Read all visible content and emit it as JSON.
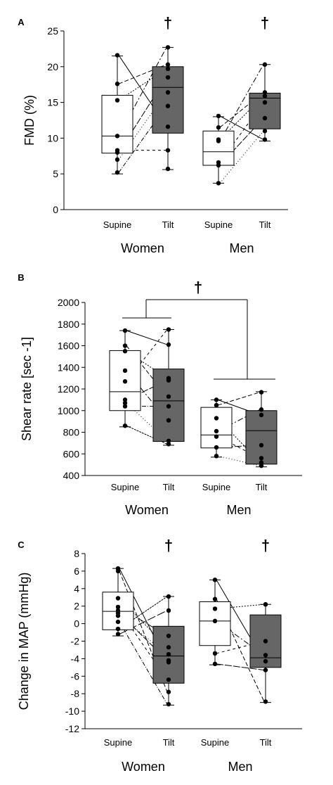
{
  "chart_data": [
    {
      "panel": "A",
      "type": "boxplot",
      "ylabel": "FMD (%)",
      "ylim": [
        0,
        25
      ],
      "yticks": [
        0,
        5,
        10,
        15,
        20,
        25
      ],
      "groups": [
        {
          "label": "Women",
          "conditions": [
            {
              "label": "Supine",
              "fill": "#ffffff",
              "box": {
                "whisker_low": 5.0,
                "q1": 7.9,
                "median": 10.3,
                "q3": 16.0,
                "whisker_high": 21.5
              },
              "points": [
                21.6,
                17.6,
                15.3,
                10.3,
                8.3,
                8.0,
                7.0,
                5.2
              ],
              "marker": ""
            },
            {
              "label": "Tilt",
              "fill": "#666666",
              "box": {
                "whisker_low": 5.6,
                "q1": 10.7,
                "median": 17.1,
                "q3": 20.0,
                "whisker_high": 22.7
              },
              "points": [
                22.7,
                20.3,
                19.7,
                18.5,
                16.4,
                14.5,
                11.6,
                8.3,
                5.7
              ],
              "marker": "†"
            }
          ],
          "pairs": [
            [
              21.6,
              11.6
            ],
            [
              17.6,
              20.3
            ],
            [
              15.3,
              19.7
            ],
            [
              10.3,
              22.7
            ],
            [
              8.3,
              8.3
            ],
            [
              8.0,
              18.5
            ],
            [
              7.0,
              16.4
            ],
            [
              5.2,
              14.5
            ]
          ]
        },
        {
          "label": "Men",
          "conditions": [
            {
              "label": "Supine",
              "fill": "#ffffff",
              "box": {
                "whisker_low": 3.7,
                "q1": 6.2,
                "median": 8.1,
                "q3": 11.0,
                "whisker_high": 13.0
              },
              "points": [
                13.1,
                11.5,
                9.8,
                9.6,
                6.6,
                6.2,
                3.7
              ],
              "marker": ""
            },
            {
              "label": "Tilt",
              "fill": "#666666",
              "box": {
                "whisker_low": 9.6,
                "q1": 11.3,
                "median": 15.6,
                "q3": 16.3,
                "whisker_high": 20.3
              },
              "points": [
                20.3,
                16.4,
                15.9,
                15.0,
                12.8,
                11.0,
                9.8
              ],
              "marker": "†"
            }
          ],
          "pairs": [
            [
              13.1,
              9.8
            ],
            [
              11.5,
              16.4
            ],
            [
              9.8,
              15.9
            ],
            [
              9.6,
              20.3
            ],
            [
              6.6,
              15.0
            ],
            [
              6.2,
              12.8
            ],
            [
              3.7,
              11.0
            ]
          ]
        }
      ]
    },
    {
      "panel": "B",
      "type": "boxplot",
      "ylabel": "Shear rate [sec -1]",
      "ylim": [
        400,
        2000
      ],
      "yticks": [
        400,
        600,
        800,
        1000,
        1200,
        1400,
        1600,
        1800,
        2000
      ],
      "group_marker": "†",
      "groups": [
        {
          "label": "Women",
          "conditions": [
            {
              "label": "Supine",
              "fill": "#ffffff",
              "box": {
                "whisker_low": 850,
                "q1": 1000,
                "median": 1175,
                "q3": 1555,
                "whisker_high": 1740
              },
              "points": [
                1740,
                1600,
                1550,
                1370,
                1270,
                1100,
                1070,
                1040,
                860
              ]
            },
            {
              "label": "Tilt",
              "fill": "#666666",
              "box": {
                "whisker_low": 680,
                "q1": 715,
                "median": 1090,
                "q3": 1385,
                "whisker_high": 1750
              },
              "points": [
                1750,
                1610,
                1300,
                1280,
                1130,
                1040,
                910,
                720,
                690
              ]
            }
          ],
          "pairs": [
            [
              1740,
              1610
            ],
            [
              1600,
              1130
            ],
            [
              1550,
              1300
            ],
            [
              1370,
              910
            ],
            [
              1270,
              1750
            ],
            [
              1100,
              1280
            ],
            [
              1070,
              720
            ],
            [
              1040,
              1040
            ],
            [
              860,
              690
            ]
          ]
        },
        {
          "label": "Men",
          "conditions": [
            {
              "label": "Supine",
              "fill": "#ffffff",
              "box": {
                "whisker_low": 570,
                "q1": 655,
                "median": 775,
                "q3": 1030,
                "whisker_high": 1100
              },
              "points": [
                1100,
                1050,
                930,
                810,
                760,
                660,
                580
              ]
            },
            {
              "label": "Tilt",
              "fill": "#666666",
              "box": {
                "whisker_low": 480,
                "q1": 505,
                "median": 815,
                "q3": 1000,
                "whisker_high": 1175
              },
              "points": [
                1170,
                1010,
                960,
                680,
                560,
                520,
                490
              ]
            }
          ],
          "pairs": [
            [
              1100,
              960
            ],
            [
              1050,
              1170
            ],
            [
              930,
              520
            ],
            [
              810,
              1010
            ],
            [
              760,
              560
            ],
            [
              660,
              680
            ],
            [
              580,
              490
            ]
          ]
        }
      ]
    },
    {
      "panel": "C",
      "type": "boxplot",
      "ylabel": "Change in MAP (mmHg)",
      "ylim": [
        -12,
        8
      ],
      "yticks": [
        -12,
        -10,
        -8,
        -6,
        -4,
        -2,
        0,
        2,
        4,
        6,
        8
      ],
      "groups": [
        {
          "label": "Women",
          "conditions": [
            {
              "label": "Supine",
              "fill": "#ffffff",
              "box": {
                "whisker_low": -1.4,
                "q1": -0.7,
                "median": 1.4,
                "q3": 3.6,
                "whisker_high": 6.3
              },
              "points": [
                6.3,
                6.0,
                2.9,
                1.9,
                1.5,
                1.2,
                0.9,
                0.2,
                -0.6,
                -1.2
              ]
            },
            {
              "label": "Tilt",
              "fill": "#666666",
              "box": {
                "whisker_low": -9.3,
                "q1": -6.8,
                "median": -3.7,
                "q3": -0.3,
                "whisker_high": 3.1
              },
              "points": [
                3.1,
                1.5,
                -1.4,
                -2.7,
                -3.5,
                -4.2,
                -4.4,
                -6.4,
                -7.8,
                -9.2
              ],
              "marker": "†"
            }
          ],
          "pairs": [
            [
              6.3,
              -4.4
            ],
            [
              6.0,
              -7.8
            ],
            [
              2.9,
              -2.7
            ],
            [
              1.9,
              -1.4
            ],
            [
              1.5,
              -6.4
            ],
            [
              1.2,
              -4.2
            ],
            [
              0.9,
              -3.5
            ],
            [
              0.2,
              -9.2
            ],
            [
              -0.6,
              3.1
            ],
            [
              -1.2,
              1.5
            ]
          ]
        },
        {
          "label": "Men",
          "conditions": [
            {
              "label": "Supine",
              "fill": "#ffffff",
              "box": {
                "whisker_low": -4.7,
                "q1": -2.5,
                "median": 0.3,
                "q3": 2.5,
                "whisker_high": 5.0
              },
              "points": [
                5.0,
                2.8,
                1.7,
                0.3,
                -3.4,
                -4.6
              ]
            },
            {
              "label": "Tilt",
              "fill": "#666666",
              "box": {
                "whisker_low": -9.0,
                "q1": -5.0,
                "median": -3.9,
                "q3": 1.0,
                "whisker_high": 2.2
              },
              "points": [
                2.2,
                2.2,
                -2.0,
                -3.6,
                -4.3,
                -5.3,
                -8.9
              ],
              "marker": "†"
            }
          ],
          "pairs": [
            [
              5.0,
              -4.3
            ],
            [
              2.8,
              -8.9
            ],
            [
              1.7,
              2.2
            ],
            [
              0.3,
              -3.6
            ],
            [
              -3.4,
              -2.0
            ],
            [
              -4.6,
              -5.3
            ]
          ]
        }
      ]
    }
  ]
}
